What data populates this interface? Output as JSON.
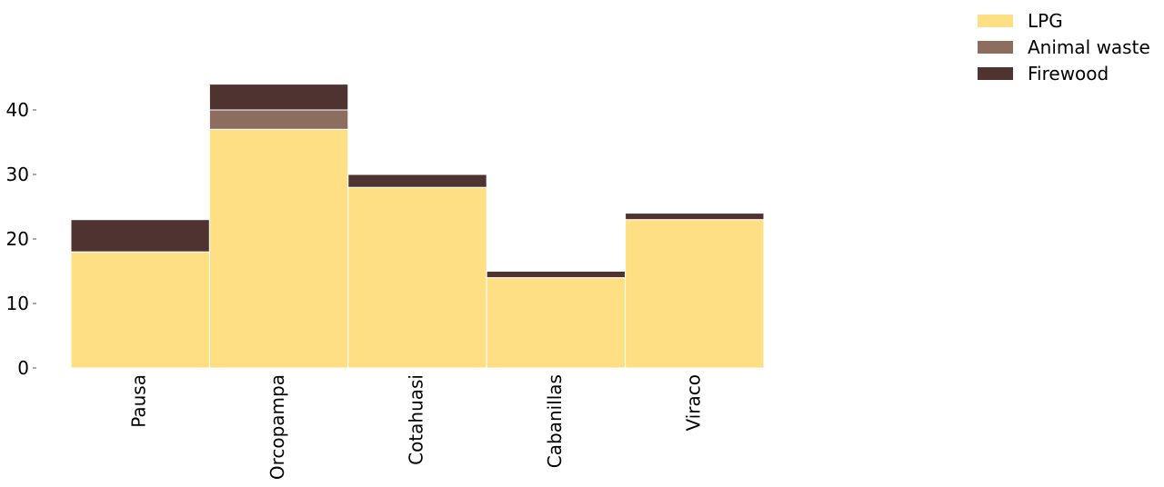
{
  "chart_data": {
    "type": "bar",
    "stacked": true,
    "categories": [
      "Pausa",
      "Orcopampa",
      "Cotahuasi",
      "Cabanillas",
      "Viraco"
    ],
    "series": [
      {
        "name": "LPG",
        "color": "#FEDF83",
        "values": [
          18,
          37,
          28,
          14,
          23
        ]
      },
      {
        "name": "Animal waste",
        "color": "#8C6D5E",
        "values": [
          0,
          3,
          0,
          0,
          0
        ]
      },
      {
        "name": "Firewood",
        "color": "#4F3330",
        "values": [
          5,
          4,
          2,
          1,
          1
        ]
      }
    ],
    "yticks": [
      0,
      10,
      20,
      30,
      40
    ],
    "ylim": [
      0,
      44
    ],
    "title": "",
    "xlabel": "",
    "ylabel": "",
    "grid": false,
    "legend_position": "top-right",
    "bar_edge_color": "#ffffff"
  }
}
